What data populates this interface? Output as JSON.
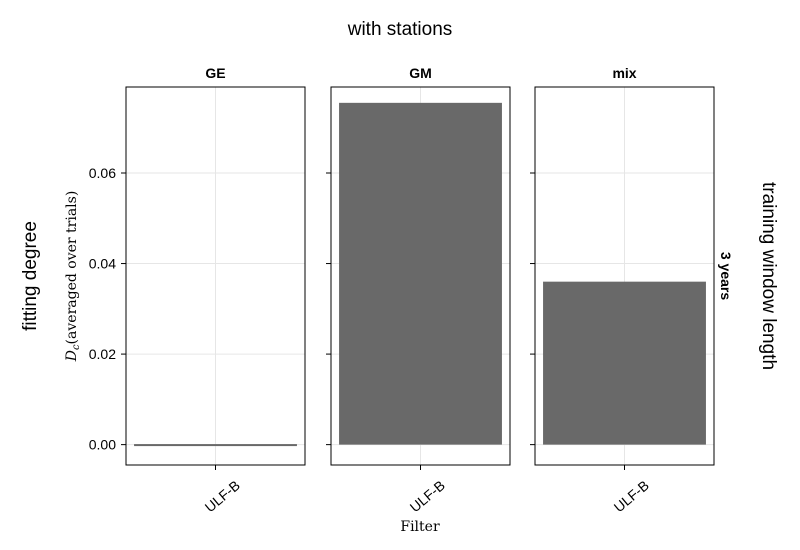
{
  "chart_data": {
    "type": "bar",
    "title": "with stations",
    "xlabel": "Filter",
    "ylabel": "D_c (averaged over trials)",
    "ylabel_main": "D",
    "ylabel_sub": "c",
    "ylabel_rest": "(averaged over trials)",
    "row_axis_label": "fitting degree",
    "col_axis_label": "training window length",
    "row_facet_label": "3 years",
    "ylim": [
      -0.0045,
      0.079
    ],
    "yticks": [
      0.0,
      0.02,
      0.04,
      0.06
    ],
    "ytick_labels": [
      "0.00",
      "0.02",
      "0.04",
      "0.06"
    ],
    "grid": true,
    "bar_color": "#666666",
    "panels": [
      {
        "title": "GE",
        "categories": [
          "ULF-B"
        ],
        "values": [
          -0.0002
        ]
      },
      {
        "title": "GM",
        "categories": [
          "ULF-B"
        ],
        "values": [
          0.0755
        ]
      },
      {
        "title": "mix",
        "categories": [
          "ULF-B"
        ],
        "values": [
          0.036
        ]
      }
    ]
  }
}
